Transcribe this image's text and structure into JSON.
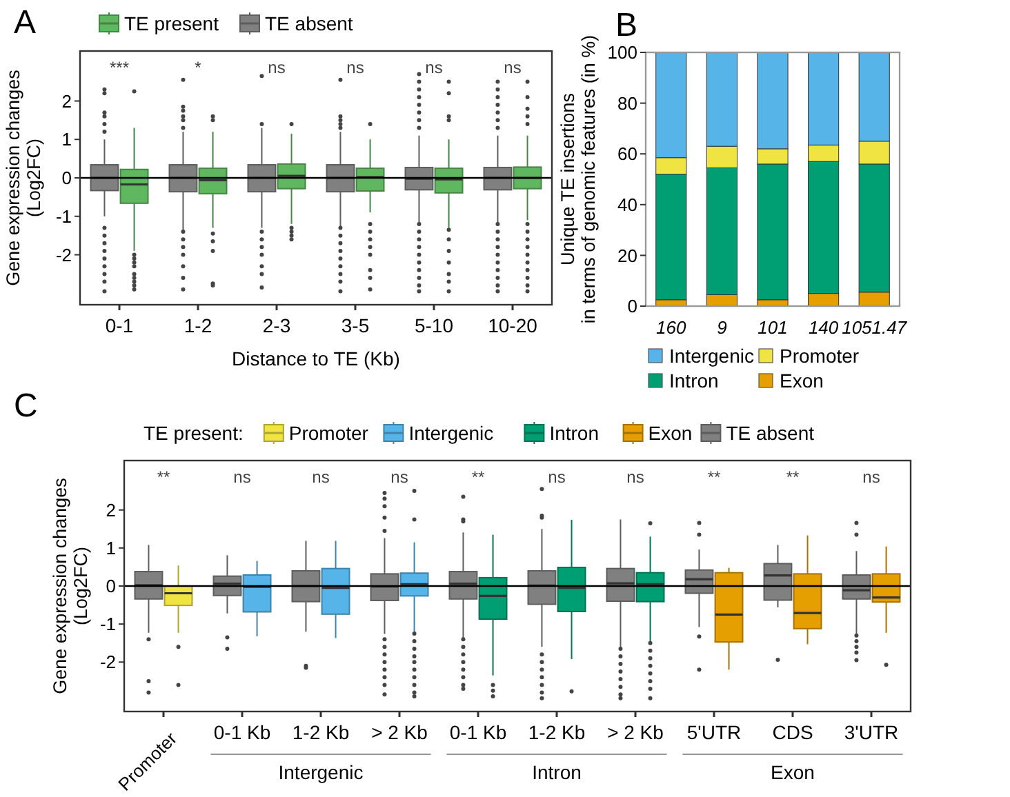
{
  "chart_data": [
    {
      "type": "box",
      "title": "A",
      "xlabel": "Distance to TE (Kb)",
      "ylabel": "Gene expression changes\n(Log2FC)",
      "categories": [
        "0-1",
        "1-2",
        "2-3",
        "3-5",
        "5-10",
        "10-20"
      ],
      "ylim": [
        -3.3,
        3.3
      ],
      "yticks": [
        -2,
        -1,
        0,
        1,
        2
      ],
      "legend": "top",
      "ref_lines": [
        {
          "axis": "y",
          "value": 0
        }
      ],
      "series": [
        {
          "name": "TE absent",
          "color": "#808080",
          "boxes": [
            {
              "low": -1.0,
              "q1": -0.33,
              "median": 0.0,
              "q3": 0.34,
              "high": 1.0,
              "outliers": [
                2.3,
                2.2,
                1.7,
                1.6,
                1.4,
                1.2,
                -1.3,
                -1.5,
                -1.7,
                -1.9,
                -2.1,
                -2.3,
                -2.5,
                -2.7,
                -2.95
              ]
            },
            {
              "low": -1.4,
              "q1": -0.36,
              "median": 0.0,
              "q3": 0.34,
              "high": 1.2,
              "outliers": [
                2.55,
                1.85,
                1.75,
                1.6,
                1.5,
                1.3,
                -1.4,
                -1.6,
                -1.8,
                -2.0,
                -2.3,
                -2.6,
                -2.9
              ]
            },
            {
              "low": -1.3,
              "q1": -0.36,
              "median": 0.0,
              "q3": 0.34,
              "high": 1.3,
              "outliers": [
                2.65,
                1.4,
                -1.4,
                -1.6,
                -1.8,
                -2.0,
                -2.3,
                -2.5,
                -2.85
              ]
            },
            {
              "low": -1.3,
              "q1": -0.36,
              "median": 0.0,
              "q3": 0.34,
              "high": 1.2,
              "outliers": [
                2.55,
                1.6,
                1.5,
                1.4,
                1.3,
                -1.3,
                -1.5,
                -1.7,
                -1.9,
                -2.1,
                -2.3,
                -2.5,
                -2.7,
                -2.95
              ]
            },
            {
              "low": -1.2,
              "q1": -0.31,
              "median": -0.02,
              "q3": 0.27,
              "high": 1.1,
              "outliers": [
                2.7,
                2.5,
                2.3,
                2.1,
                1.9,
                1.7,
                1.5,
                1.3,
                -1.2,
                -1.4,
                -1.6,
                -1.8,
                -2.0,
                -2.2,
                -2.4,
                -2.6,
                -2.8,
                -2.95
              ]
            },
            {
              "low": -1.2,
              "q1": -0.31,
              "median": 0.0,
              "q3": 0.27,
              "high": 1.1,
              "outliers": [
                2.5,
                2.3,
                2.1,
                1.9,
                1.7,
                1.5,
                1.3,
                -1.2,
                -1.4,
                -1.6,
                -1.8,
                -2.0,
                -2.2,
                -2.4,
                -2.6,
                -2.8,
                -2.95
              ]
            }
          ]
        },
        {
          "name": "TE present",
          "color": "#5fb760",
          "boxes": [
            {
              "low": -1.9,
              "q1": -0.66,
              "median": -0.17,
              "q3": 0.22,
              "high": 1.3,
              "outliers": [
                2.25,
                -2.0,
                -2.1,
                -2.2,
                -2.3,
                -2.5,
                -2.6,
                -2.7,
                -2.8,
                -2.9
              ]
            },
            {
              "low": -1.3,
              "q1": -0.41,
              "median": -0.06,
              "q3": 0.25,
              "high": 1.2,
              "outliers": [
                1.6,
                1.5,
                -1.45,
                -1.65,
                -1.9,
                -2.75,
                -2.8
              ]
            },
            {
              "low": -1.2,
              "q1": -0.28,
              "median": 0.05,
              "q3": 0.36,
              "high": 1.15,
              "outliers": [
                1.4,
                -1.3,
                -1.4,
                -1.5,
                -1.6
              ]
            },
            {
              "low": -0.9,
              "q1": -0.34,
              "median": 0.02,
              "q3": 0.25,
              "high": 1.0,
              "outliers": [
                1.4,
                -1.2,
                -1.4,
                -1.6,
                -1.8,
                -2.0,
                -2.4,
                -2.6,
                -2.9
              ]
            },
            {
              "low": -1.3,
              "q1": -0.39,
              "median": -0.04,
              "q3": 0.25,
              "high": 1.0,
              "outliers": [
                2.5,
                2.2,
                1.6,
                1.5,
                -1.35,
                -1.6,
                -1.9,
                -2.2,
                -2.5,
                -2.7,
                -2.95
              ]
            },
            {
              "low": -1.1,
              "q1": -0.28,
              "median": 0.0,
              "q3": 0.28,
              "high": 1.1,
              "outliers": [
                2.5,
                2.1,
                1.8,
                1.6,
                1.4,
                -1.2,
                -1.4,
                -1.6,
                -1.8,
                -2.0,
                -2.2,
                -2.4,
                -2.6,
                -2.8,
                -2.95
              ]
            }
          ]
        }
      ],
      "annotations": [
        "***",
        "*",
        "ns",
        "ns",
        "ns",
        "ns"
      ]
    },
    {
      "type": "bar",
      "stacked": true,
      "title": "B",
      "ylabel": "Unique TE insertions\nin terms of genomic features (in %)",
      "categories": [
        "160",
        "9",
        "101",
        "140",
        "1051.47"
      ],
      "ylim": [
        0,
        100
      ],
      "yticks": [
        0,
        20,
        40,
        60,
        80,
        100
      ],
      "legend": "bottom",
      "series": [
        {
          "name": "Exon",
          "color": "#e69f00",
          "values": [
            2.5,
            4.5,
            2.5,
            5,
            5.5
          ]
        },
        {
          "name": "Intron",
          "color": "#009e73",
          "values": [
            49.5,
            50,
            53.5,
            52,
            50.5
          ]
        },
        {
          "name": "Promoter",
          "color": "#f0e442",
          "values": [
            6.5,
            8.5,
            6,
            6.5,
            9
          ]
        },
        {
          "name": "Intergenic",
          "color": "#56b4e9",
          "values": [
            41.5,
            37,
            38,
            36.5,
            35
          ]
        }
      ]
    },
    {
      "type": "box",
      "title": "C",
      "ylabel": "Gene expression changes\n(Log2FC)",
      "legend_title": "TE present:",
      "categories": [
        "Promoter",
        "0-1 Kb",
        "1-2 Kb",
        "> 2 Kb",
        "0-1 Kb",
        "1-2 Kb",
        "> 2 Kb",
        "5'UTR",
        "CDS",
        "3'UTR"
      ],
      "ylim": [
        -3.3,
        3.3
      ],
      "yticks": [
        -2,
        -1,
        0,
        1,
        2
      ],
      "legend": "top",
      "ref_lines": [
        {
          "axis": "y",
          "value": 0
        }
      ],
      "series": [
        {
          "name": "TE absent",
          "color": "#808080",
          "boxes": [
            {
              "low": -1.23,
              "q1": -0.34,
              "median": 0.02,
              "q3": 0.38,
              "high": 1.08,
              "outliers": [
                -1.4,
                -2.5,
                -2.8
              ]
            },
            {
              "low": -0.72,
              "q1": -0.25,
              "median": 0.06,
              "q3": 0.26,
              "high": 0.81,
              "outliers": [
                -1.35,
                -1.65
              ]
            },
            {
              "low": -1.2,
              "q1": -0.41,
              "median": 0.0,
              "q3": 0.4,
              "high": 1.19,
              "outliers": [
                -2.1,
                -2.15
              ]
            },
            {
              "low": -1.26,
              "q1": -0.38,
              "median": -0.01,
              "q3": 0.32,
              "high": 1.26,
              "outliers": [
                2.45,
                2.3,
                2.1,
                1.8,
                1.45,
                -1.4,
                -1.6,
                -1.8,
                -2.0,
                -2.2,
                -2.4,
                -2.6,
                -2.85
              ]
            },
            {
              "low": -1.4,
              "q1": -0.34,
              "median": 0.06,
              "q3": 0.38,
              "high": 1.41,
              "outliers": [
                2.35,
                1.75,
                1.7,
                -1.4,
                -1.6,
                -1.8,
                -2.0,
                -2.2,
                -2.4,
                -2.6,
                -2.7
              ]
            },
            {
              "low": -1.6,
              "q1": -0.48,
              "median": 0.01,
              "q3": 0.4,
              "high": 1.5,
              "outliers": [
                2.55,
                1.85,
                1.8,
                -1.8,
                -2.0,
                -2.2,
                -2.4,
                -2.6,
                -2.8,
                -2.95
              ]
            },
            {
              "low": -1.6,
              "q1": -0.4,
              "median": 0.07,
              "q3": 0.46,
              "high": 1.75,
              "outliers": [
                -1.65,
                -1.85,
                -2.05,
                -2.25,
                -2.45,
                -2.65,
                -2.85,
                -2.95
              ]
            },
            {
              "low": -1.08,
              "q1": -0.19,
              "median": 0.18,
              "q3": 0.42,
              "high": 0.96,
              "outliers": [
                1.66,
                1.35,
                -1.33,
                -2.2
              ]
            },
            {
              "low": -0.56,
              "q1": -0.37,
              "median": 0.28,
              "q3": 0.59,
              "high": 1.08,
              "outliers": [
                -1.94
              ]
            },
            {
              "low": -1.28,
              "q1": -0.34,
              "median": -0.11,
              "q3": 0.29,
              "high": 0.92,
              "outliers": [
                1.66,
                1.35,
                -1.3,
                -1.45,
                -1.6,
                -1.75,
                -1.95
              ]
            }
          ]
        },
        {
          "name": "Promoter",
          "color": "#f0e442",
          "boxes": [
            {
              "low": -1.23,
              "q1": -0.51,
              "median": -0.19,
              "q3": 0.0,
              "high": 0.54,
              "outliers": [
                -1.6,
                -2.6
              ]
            },
            null,
            null,
            null,
            null,
            null,
            null,
            null,
            null,
            null
          ]
        },
        {
          "name": "Intergenic",
          "color": "#56b4e9",
          "boxes": [
            null,
            {
              "low": -1.32,
              "q1": -0.68,
              "median": -0.02,
              "q3": 0.29,
              "high": 0.66
            },
            {
              "low": -1.37,
              "q1": -0.74,
              "median": -0.05,
              "q3": 0.46,
              "high": 1.19
            },
            {
              "low": -1.2,
              "q1": -0.26,
              "median": 0.05,
              "q3": 0.34,
              "high": 1.15,
              "outliers": [
                2.5,
                1.75,
                -1.25,
                -1.45,
                -1.65,
                -1.85,
                -2.0,
                -2.2,
                -2.4,
                -2.6,
                -2.8,
                -2.9
              ]
            },
            null,
            null,
            null,
            null,
            null,
            null
          ]
        },
        {
          "name": "Intron",
          "color": "#009e73",
          "boxes": [
            null,
            null,
            null,
            null,
            {
              "low": -2.35,
              "q1": -0.87,
              "median": -0.26,
              "q3": 0.22,
              "high": 1.35,
              "outliers": [
                -2.6,
                -2.75,
                -2.9
              ]
            },
            {
              "low": -1.92,
              "q1": -0.67,
              "median": -0.05,
              "q3": 0.49,
              "high": 1.74,
              "outliers": [
                -2.77
              ]
            },
            {
              "low": -1.45,
              "q1": -0.41,
              "median": 0.05,
              "q3": 0.35,
              "high": 1.3,
              "outliers": [
                1.65,
                -1.5,
                -1.7,
                -1.9,
                -2.1,
                -2.3,
                -2.5,
                -2.7,
                -2.95
              ]
            },
            null,
            null,
            null
          ]
        },
        {
          "name": "Exon",
          "color": "#e69f00",
          "boxes": [
            null,
            null,
            null,
            null,
            null,
            null,
            null,
            {
              "low": -2.2,
              "q1": -1.47,
              "median": -0.75,
              "q3": 0.35,
              "high": 0.48
            },
            {
              "low": -1.53,
              "q1": -1.12,
              "median": -0.71,
              "q3": 0.32,
              "high": 1.33
            },
            {
              "low": -1.23,
              "q1": -0.42,
              "median": -0.3,
              "q3": 0.32,
              "high": 1.04,
              "outliers": [
                -2.07
              ]
            }
          ]
        }
      ],
      "annotations": [
        "**",
        "ns",
        "ns",
        "ns",
        "**",
        "ns",
        "ns",
        "**",
        "**",
        "ns",
        "Intergenic",
        "Intron",
        "Exon"
      ]
    }
  ]
}
